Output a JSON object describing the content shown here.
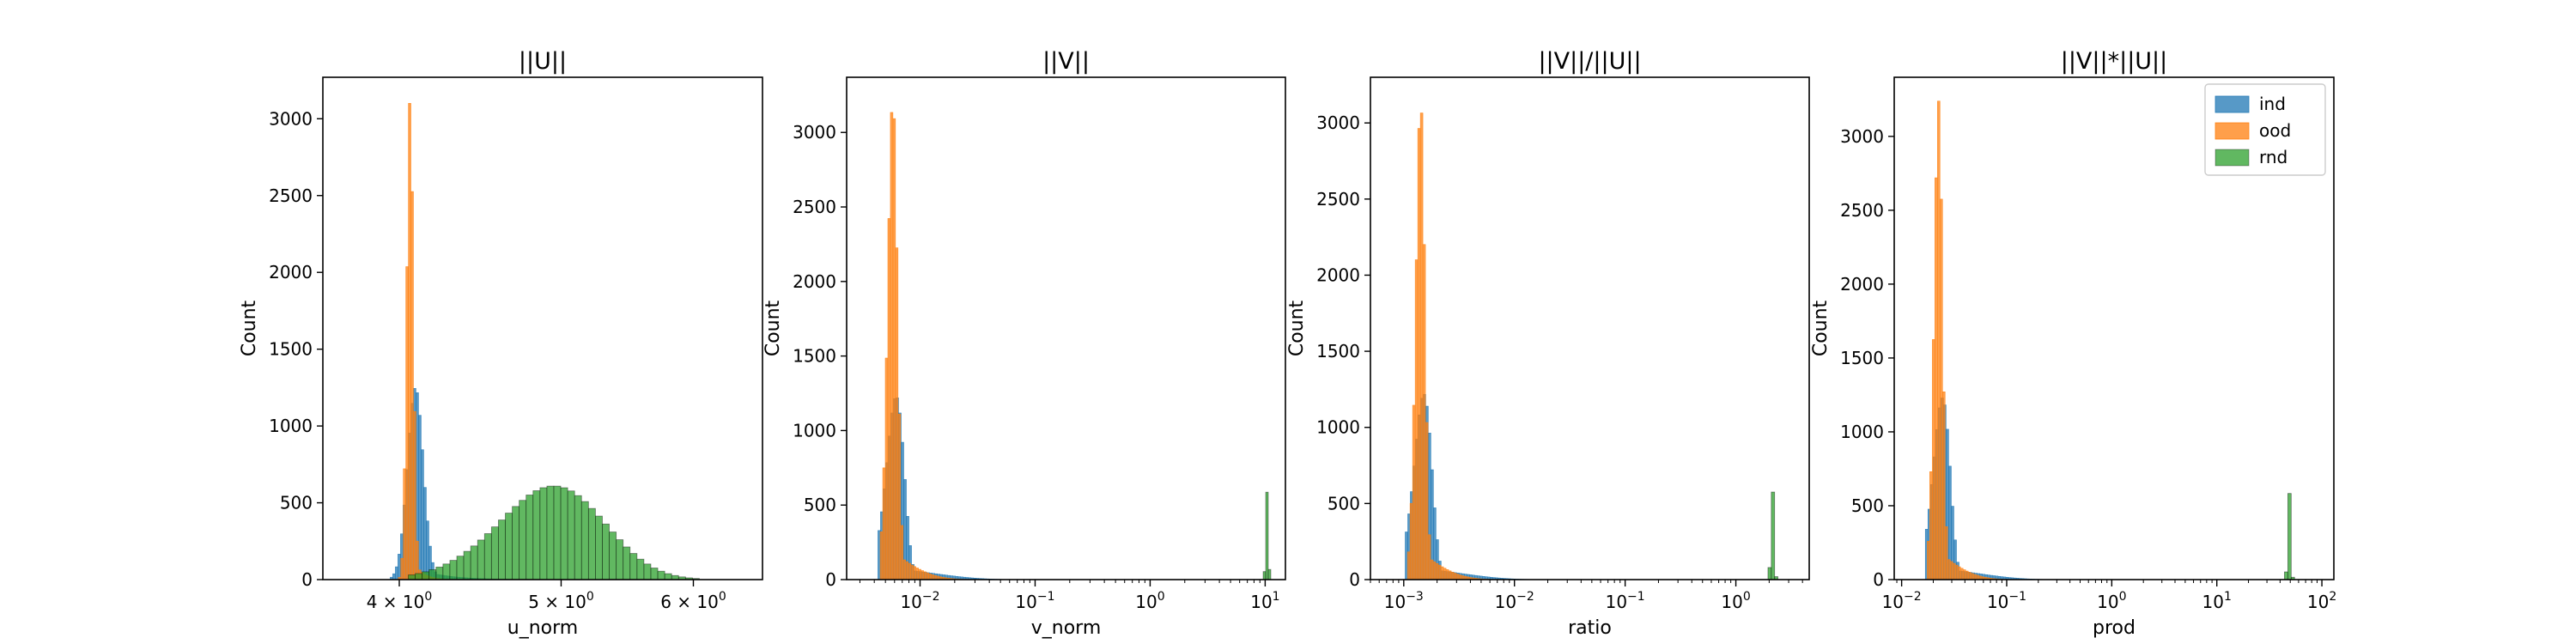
{
  "chart_data": [
    {
      "type": "histogram",
      "title": "||U||",
      "xlabel": "u_norm",
      "ylabel": "Count",
      "xscale": "log",
      "xlim": [
        3.6,
        6.6
      ],
      "ylim": [
        0,
        3270
      ],
      "xticks": [
        {
          "value": 4,
          "base": "4",
          "exp": "0"
        },
        {
          "value": 6,
          "base": "6",
          "exp": "0"
        }
      ],
      "xticks_mid": [
        {
          "value": 5,
          "base": "5",
          "exp": "0"
        }
      ],
      "yticks": [
        0,
        500,
        1000,
        1500,
        2000,
        2500,
        3000
      ],
      "series": [
        {
          "name": "ind",
          "peak_x": 4.09,
          "peak_y": 1250,
          "spread": 0.045,
          "start": 3.95,
          "tail": 0.16
        },
        {
          "name": "ood",
          "peak_x": 4.06,
          "peak_y": 3130,
          "spread": 0.018,
          "start": 3.98,
          "tail": 0.05
        },
        {
          "name": "rnd",
          "peak_x": 4.95,
          "peak_y": 610,
          "spread": 0.36,
          "start": 4.05,
          "end": 6.05,
          "tail": 0
        }
      ]
    },
    {
      "type": "histogram",
      "title": "||V||",
      "xlabel": "v_norm",
      "ylabel": "Count",
      "xscale": "log",
      "xlim": [
        0.0023,
        15
      ],
      "ylim": [
        0,
        3370
      ],
      "xticks": [
        {
          "value": 0.01,
          "base": "10",
          "exp": "−2"
        },
        {
          "value": 0.1,
          "base": "10",
          "exp": "−1"
        },
        {
          "value": 1,
          "base": "10",
          "exp": "0"
        },
        {
          "value": 10,
          "base": "10",
          "exp": "1"
        }
      ],
      "yticks": [
        0,
        500,
        1000,
        1500,
        2000,
        2500,
        3000
      ],
      "series": [
        {
          "name": "ind",
          "peak_x": 0.0062,
          "peak_y": 1230,
          "spread": 0.0011,
          "start": 0.0043,
          "tail": 0.012
        },
        {
          "name": "ood",
          "peak_x": 0.0058,
          "peak_y": 3230,
          "spread": 0.00055,
          "start": 0.0045,
          "tail": 0.004
        },
        {
          "name": "rnd",
          "peak_x": 10.4,
          "peak_y": 590,
          "spread": 0.25,
          "start": 9.6,
          "end": 11.2,
          "tail": 0
        }
      ]
    },
    {
      "type": "histogram",
      "title": "||V||/||U||",
      "xlabel": "ratio",
      "ylabel": "Count",
      "xscale": "log",
      "xlim": [
        0.0005,
        4.6
      ],
      "ylim": [
        0,
        3300
      ],
      "xticks": [
        {
          "value": 0.001,
          "base": "10",
          "exp": "−3"
        },
        {
          "value": 0.01,
          "base": "10",
          "exp": "−2"
        },
        {
          "value": 0.1,
          "base": "10",
          "exp": "−1"
        },
        {
          "value": 1,
          "base": "10",
          "exp": "0"
        }
      ],
      "yticks": [
        0,
        500,
        1000,
        1500,
        2000,
        2500,
        3000
      ],
      "series": [
        {
          "name": "ind",
          "peak_x": 0.00152,
          "peak_y": 1220,
          "spread": 0.00028,
          "start": 0.00103,
          "tail": 0.003
        },
        {
          "name": "ood",
          "peak_x": 0.00142,
          "peak_y": 3150,
          "spread": 0.00013,
          "start": 0.00108,
          "tail": 0.001
        },
        {
          "name": "rnd",
          "peak_x": 2.15,
          "peak_y": 590,
          "spread": 0.065,
          "start": 1.95,
          "end": 2.4,
          "tail": 0
        }
      ]
    },
    {
      "type": "histogram",
      "title": "||V||*||U||",
      "xlabel": "prod",
      "ylabel": "Count",
      "xscale": "log",
      "xlim": [
        0.0085,
        130
      ],
      "ylim": [
        0,
        3400
      ],
      "xticks": [
        {
          "value": 0.01,
          "base": "10",
          "exp": "−2"
        },
        {
          "value": 0.1,
          "base": "10",
          "exp": "−1"
        },
        {
          "value": 1,
          "base": "10",
          "exp": "0"
        },
        {
          "value": 10,
          "base": "10",
          "exp": "1"
        },
        {
          "value": 100,
          "base": "10",
          "exp": "2"
        }
      ],
      "yticks": [
        0,
        500,
        1000,
        1500,
        2000,
        2500,
        3000
      ],
      "legend": {
        "position": "upper right",
        "entries": [
          "ind",
          "ood",
          "rnd"
        ]
      },
      "series": [
        {
          "name": "ind",
          "peak_x": 0.0245,
          "peak_y": 1230,
          "spread": 0.0045,
          "start": 0.0168,
          "tail": 0.05
        },
        {
          "name": "ood",
          "peak_x": 0.0225,
          "peak_y": 3240,
          "spread": 0.002,
          "start": 0.0175,
          "tail": 0.016
        },
        {
          "name": "rnd",
          "peak_x": 49,
          "peak_y": 590,
          "spread": 1.5,
          "start": 44,
          "end": 55,
          "tail": 0
        }
      ]
    }
  ],
  "colors": {
    "ind": "#1f77b4",
    "ood": "#ff7f0e",
    "rnd": "#2ca02c"
  }
}
